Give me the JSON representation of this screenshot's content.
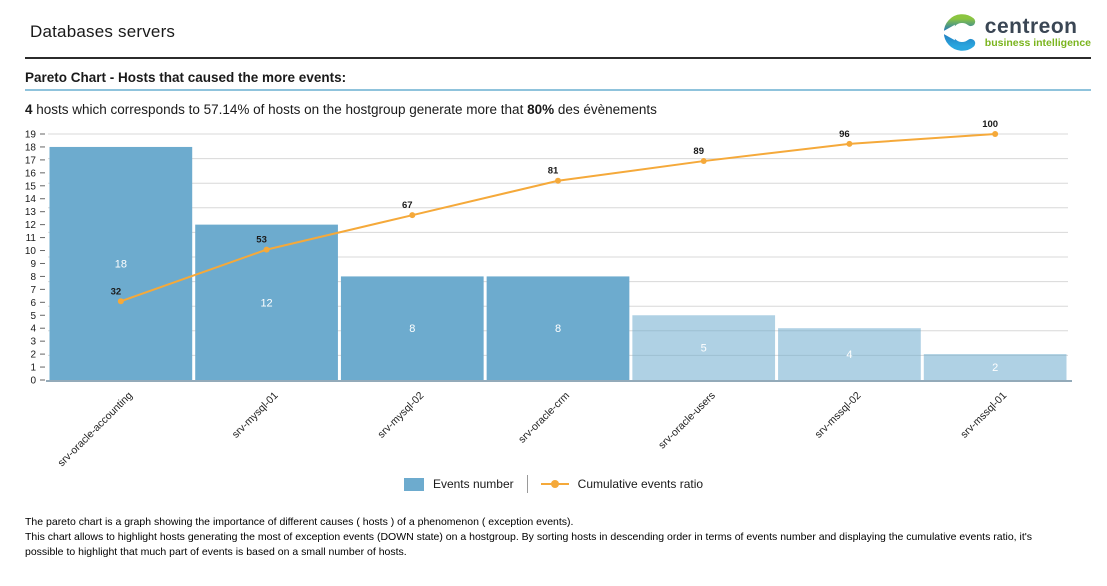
{
  "header": {
    "title": "Databases servers",
    "logo": {
      "name": "centreon",
      "subtitle": "business intelligence"
    }
  },
  "section": {
    "heading": "Pareto Chart - Hosts that caused the more events:"
  },
  "summary": {
    "parts": [
      {
        "text": "4",
        "bold": true
      },
      {
        "text": " hosts which corresponds to 57.14% of hosts on the hostgroup generate more that ",
        "bold": false
      },
      {
        "text": "80%",
        "bold": true
      },
      {
        "text": " des évènements",
        "bold": false
      }
    ]
  },
  "chart_data": {
    "type": "bar",
    "subtype": "pareto (bar + cumulative line)",
    "title": "Pareto Chart - Hosts that caused the more events",
    "categories": [
      "srv-oracle-accounting",
      "srv-mysql-01",
      "srv-mysql-02",
      "srv-oracle-crm",
      "srv-oracle-users",
      "srv-mssql-02",
      "srv-mssql-01"
    ],
    "series": [
      {
        "name": "Events number",
        "type": "bar",
        "values": [
          18,
          12,
          8,
          8,
          5,
          4,
          2
        ]
      },
      {
        "name": "Cumulative events ratio",
        "type": "line",
        "values": [
          32,
          53,
          67,
          81,
          89,
          96,
          100
        ]
      }
    ],
    "ylim_left": [
      0,
      19
    ],
    "ytick_step_left": 1,
    "ylim_right_percent": [
      0,
      100
    ],
    "grid_percent_step": 10,
    "grid": "horizontal only",
    "highlight_count": 4,
    "xlabel": "",
    "ylabel": "",
    "legend_position": "bottom-center",
    "colors": {
      "bar_dark": "#6dabce",
      "bar_light": "#abcfe2",
      "line": "#f5a93a",
      "grid": "#d8d8d8",
      "axis": "#93aab9",
      "bar_label_text": "#ffffff",
      "point_label_text": "#1a1a1a"
    }
  },
  "legend": {
    "bars_label": "Events number",
    "line_label": "Cumulative events ratio"
  },
  "footer": {
    "lines": [
      "The pareto chart is a graph showing the importance of different causes ( hosts ) of a phenomenon ( exception events).",
      "This chart allows to highlight hosts generating the most of exception events (DOWN state) on a hostgroup. By sorting hosts in descending order in terms of events number and displaying the cumulative events ratio, it's",
      "possible to highlight that much part of events is based on a small number of hosts."
    ]
  },
  "theme": {
    "title_rule": "#2b2b2b",
    "heading_underline": "#8fc3dc",
    "logo_green": "#7ab41d",
    "logo_text": "#3a4654"
  }
}
